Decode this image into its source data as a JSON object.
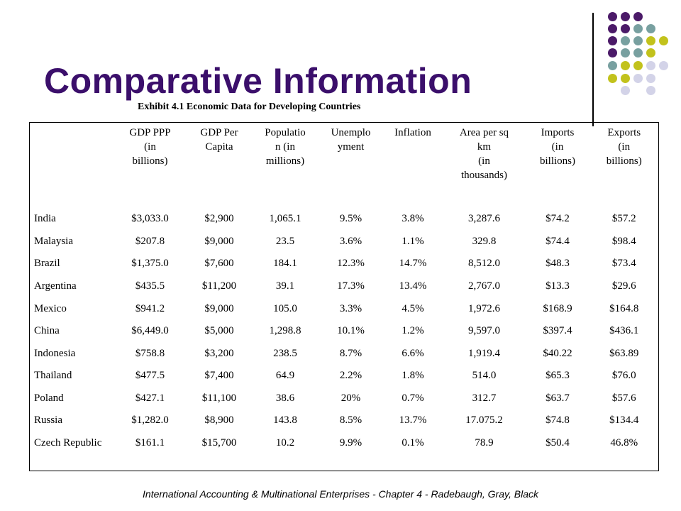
{
  "slide": {
    "title": "Comparative Information",
    "subtitle": "Exhibit 4.1  Economic Data for Developing Countries",
    "footer": "International Accounting & Multinational Enterprises - Chapter 4 - Radebaugh, Gray, Black"
  },
  "colors": {
    "title": "#3b0f6b",
    "dot_purple": "#4b1a68",
    "dot_teal": "#78a0a0",
    "dot_yellow": "#c2c21c",
    "dot_lavender": "#d3d3e8"
  },
  "table": {
    "headers": [
      "",
      "GDP PPP (in billions)",
      "GDP Per Capita",
      "Population (in millions)",
      "Unemployment",
      "Inflation",
      "Area per sq km (in thousands)",
      "Imports (in billions)",
      "Exports (in billions)"
    ],
    "rows": [
      [
        "India",
        "$3,033.0",
        "$2,900",
        "1,065.1",
        "9.5%",
        "3.8%",
        "3,287.6",
        "$74.2",
        "$57.2"
      ],
      [
        "Malaysia",
        "$207.8",
        "$9,000",
        "23.5",
        "3.6%",
        "1.1%",
        "329.8",
        "$74.4",
        "$98.4"
      ],
      [
        "Brazil",
        "$1,375.0",
        "$7,600",
        "184.1",
        "12.3%",
        "14.7%",
        "8,512.0",
        "$48.3",
        "$73.4"
      ],
      [
        "Argentina",
        "$435.5",
        "$11,200",
        "39.1",
        "17.3%",
        "13.4%",
        "2,767.0",
        "$13.3",
        "$29.6"
      ],
      [
        "Mexico",
        "$941.2",
        "$9,000",
        "105.0",
        "3.3%",
        "4.5%",
        "1,972.6",
        "$168.9",
        "$164.8"
      ],
      [
        "China",
        "$6,449.0",
        "$5,000",
        "1,298.8",
        "10.1%",
        "1.2%",
        "9,597.0",
        "$397.4",
        "$436.1"
      ],
      [
        "Indonesia",
        "$758.8",
        "$3,200",
        "238.5",
        "8.7%",
        "6.6%",
        "1,919.4",
        "$40.22",
        "$63.89"
      ],
      [
        "Thailand",
        "$477.5",
        "$7,400",
        "64.9",
        "2.2%",
        "1.8%",
        "514.0",
        "$65.3",
        "$76.0"
      ],
      [
        "Poland",
        "$427.1",
        "$11,100",
        "38.6",
        "20%",
        "0.7%",
        "312.7",
        "$63.7",
        "$57.6"
      ],
      [
        "Russia",
        "$1,282.0",
        "$8,900",
        "143.8",
        "8.5%",
        "13.7%",
        "17.075.2",
        "$74.8",
        "$134.4"
      ],
      [
        "Czech Republic",
        "$161.1",
        "$15,700",
        "10.2",
        "9.9%",
        "0.1%",
        "78.9",
        "$50.4",
        "46.8%"
      ]
    ]
  }
}
